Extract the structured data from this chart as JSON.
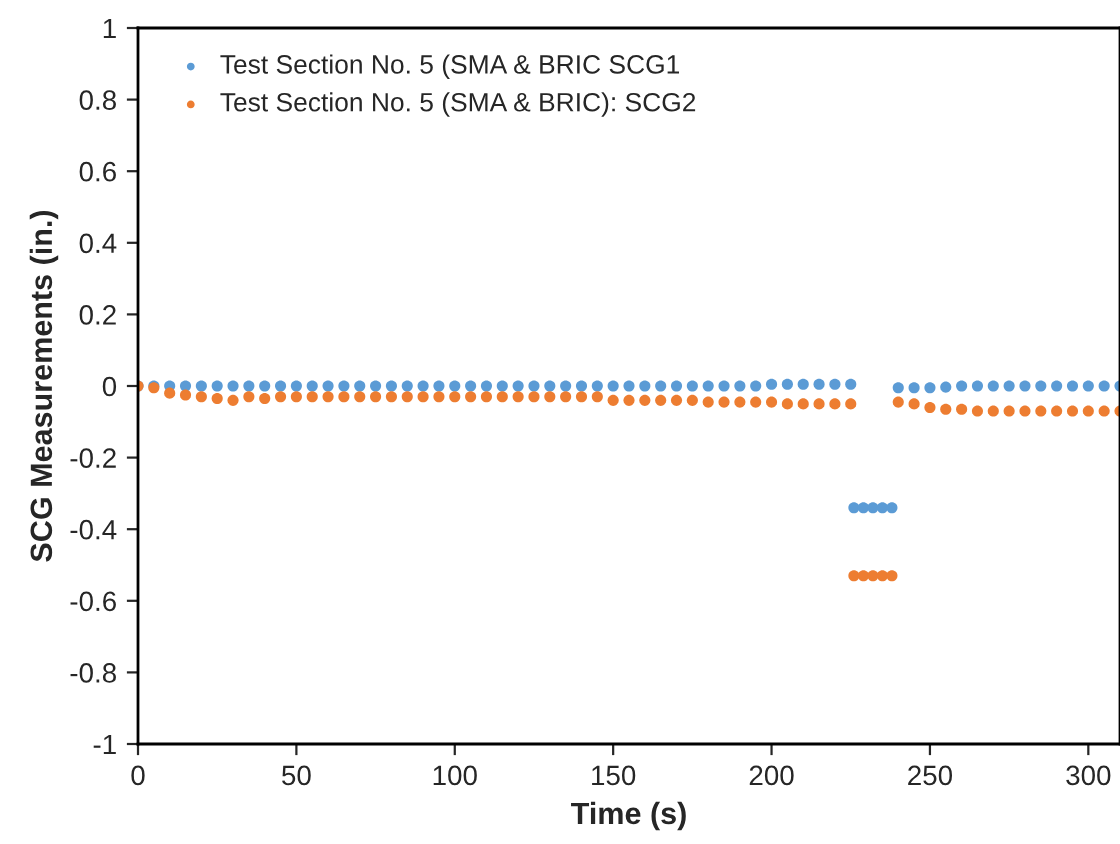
{
  "chart_data": {
    "type": "scatter",
    "xlabel": "Time (s)",
    "ylabel": "SCG Measurements (in.)",
    "xlim": [
      0,
      310
    ],
    "xticks": [
      0,
      50,
      100,
      150,
      200,
      250,
      300
    ],
    "ylim": [
      -1,
      1
    ],
    "yticks": [
      -1,
      -0.8,
      -0.6,
      -0.4,
      -0.2,
      0,
      0.2,
      0.4,
      0.6,
      0.8,
      1
    ],
    "grid": false,
    "legend": "top left",
    "marker": "circle",
    "series": [
      {
        "name": "Test Section No. 5 (SMA & BRIC SCG1",
        "color": "#5b9bd5",
        "x": [
          0,
          5,
          10,
          15,
          20,
          25,
          30,
          35,
          40,
          45,
          50,
          55,
          60,
          65,
          70,
          75,
          80,
          85,
          90,
          95,
          100,
          105,
          110,
          115,
          120,
          125,
          130,
          135,
          140,
          145,
          150,
          155,
          160,
          165,
          170,
          175,
          180,
          185,
          190,
          195,
          200,
          205,
          210,
          215,
          220,
          225,
          226,
          229,
          232,
          235,
          238,
          240,
          245,
          250,
          255,
          260,
          265,
          270,
          275,
          280,
          285,
          290,
          295,
          300,
          305,
          310
        ],
        "values": [
          0,
          0,
          0,
          0,
          0,
          0,
          0,
          0,
          0,
          0,
          0,
          0,
          0,
          0,
          0,
          0,
          0,
          0,
          0,
          0,
          0,
          0,
          0,
          0,
          0,
          0,
          0,
          0,
          0,
          0,
          0,
          0,
          0,
          0,
          0,
          0,
          0,
          0,
          0,
          0,
          0.005,
          0.005,
          0.005,
          0.005,
          0.005,
          0.005,
          -0.34,
          -0.34,
          -0.34,
          -0.34,
          -0.34,
          -0.005,
          -0.005,
          -0.005,
          -0.003,
          0,
          0,
          0,
          0,
          0,
          0,
          0,
          0,
          0,
          0,
          0
        ]
      },
      {
        "name": "Test Section No. 5 (SMA & BRIC): SCG2",
        "color": "#ed7d31",
        "x": [
          0,
          5,
          10,
          15,
          20,
          25,
          30,
          35,
          40,
          45,
          50,
          55,
          60,
          65,
          70,
          75,
          80,
          85,
          90,
          95,
          100,
          105,
          110,
          115,
          120,
          125,
          130,
          135,
          140,
          145,
          150,
          155,
          160,
          165,
          170,
          175,
          180,
          185,
          190,
          195,
          200,
          205,
          210,
          215,
          220,
          225,
          226,
          229,
          232,
          235,
          238,
          240,
          245,
          250,
          255,
          260,
          265,
          270,
          275,
          280,
          285,
          290,
          295,
          300,
          305,
          310
        ],
        "values": [
          0,
          -0.005,
          -0.02,
          -0.025,
          -0.03,
          -0.035,
          -0.04,
          -0.03,
          -0.035,
          -0.03,
          -0.03,
          -0.03,
          -0.03,
          -0.03,
          -0.03,
          -0.03,
          -0.03,
          -0.03,
          -0.03,
          -0.03,
          -0.03,
          -0.03,
          -0.03,
          -0.03,
          -0.03,
          -0.03,
          -0.03,
          -0.03,
          -0.03,
          -0.03,
          -0.04,
          -0.04,
          -0.04,
          -0.04,
          -0.04,
          -0.04,
          -0.045,
          -0.045,
          -0.045,
          -0.045,
          -0.045,
          -0.05,
          -0.05,
          -0.05,
          -0.05,
          -0.05,
          -0.53,
          -0.53,
          -0.53,
          -0.53,
          -0.53,
          -0.045,
          -0.05,
          -0.06,
          -0.065,
          -0.065,
          -0.07,
          -0.07,
          -0.07,
          -0.07,
          -0.07,
          -0.07,
          -0.07,
          -0.07,
          -0.07,
          -0.07
        ]
      }
    ]
  }
}
